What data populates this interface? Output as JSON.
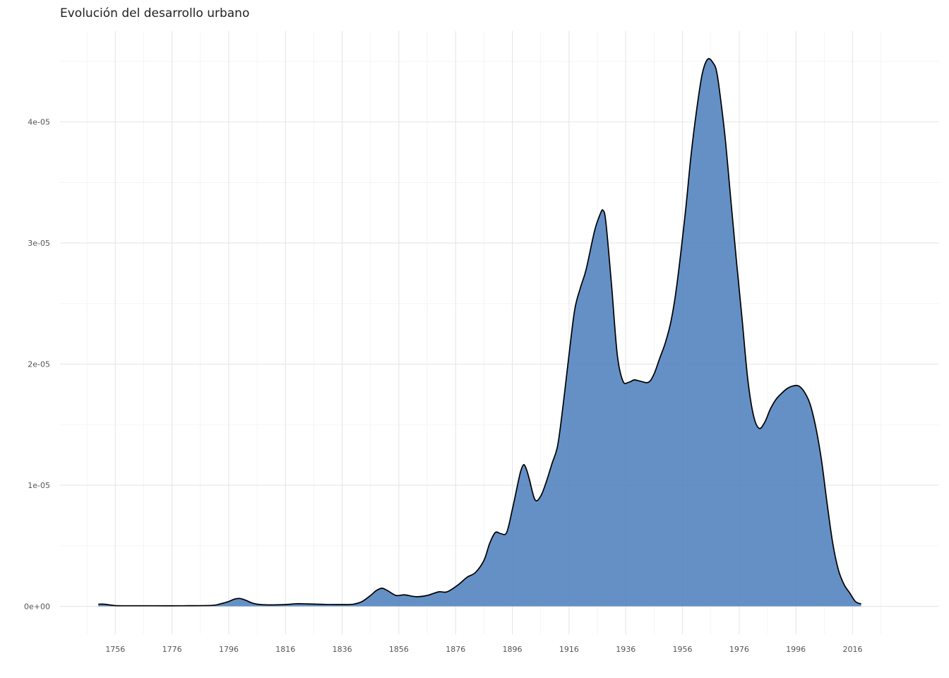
{
  "chart_data": {
    "type": "area",
    "title": "Evolución del desarrollo urbano",
    "xlabel": "",
    "ylabel": "",
    "x_ticks": [
      1756,
      1776,
      1796,
      1816,
      1836,
      1856,
      1876,
      1896,
      1916,
      1936,
      1956,
      1976,
      1996,
      2016
    ],
    "y_ticks": [
      0,
      1e-05,
      2e-05,
      3e-05,
      4e-05
    ],
    "y_tick_labels": [
      "0e+00",
      "1e-05",
      "2e-05",
      "3e-05",
      "4e-05"
    ],
    "xlim": [
      1736.5,
      2046.5
    ],
    "ylim": [
      -2.3e-06,
      4.75e-05
    ],
    "grid": true,
    "fill_color": "#4f81bd",
    "line_color": "#000000",
    "x": [
      1750,
      1752,
      1754,
      1756,
      1760,
      1770,
      1780,
      1790,
      1793,
      1796,
      1798,
      1800,
      1802,
      1804,
      1806,
      1810,
      1816,
      1820,
      1824,
      1830,
      1836,
      1840,
      1843,
      1846,
      1848,
      1850,
      1852,
      1855,
      1858,
      1862,
      1866,
      1870,
      1873,
      1877,
      1880,
      1883,
      1886,
      1888,
      1890,
      1892,
      1894,
      1896,
      1898,
      1899,
      1900,
      1901,
      1902,
      1904,
      1906,
      1908,
      1910,
      1912,
      1914,
      1916,
      1918,
      1920,
      1922,
      1925,
      1927,
      1928,
      1929,
      1931,
      1933,
      1935,
      1937,
      1939,
      1941,
      1944,
      1946,
      1948,
      1950,
      1952,
      1954,
      1957,
      1959,
      1961,
      1963,
      1965,
      1967,
      1968,
      1969,
      1971,
      1973,
      1975,
      1977,
      1979,
      1981,
      1983,
      1985,
      1987,
      1989,
      1991,
      1993,
      1995,
      1997,
      1999,
      2001,
      2003,
      2005,
      2007,
      2009,
      2011,
      2013,
      2015,
      2017,
      2019
    ],
    "y": [
      1.8e-07,
      1.8e-07,
      1.2e-07,
      6e-08,
      5e-08,
      5e-08,
      5e-08,
      8e-08,
      2e-07,
      4e-07,
      6e-07,
      6.5e-07,
      5e-07,
      3e-07,
      1.8e-07,
      1.2e-07,
      1.5e-07,
      2.2e-07,
      2e-07,
      1.6e-07,
      1.5e-07,
      1.8e-07,
      4e-07,
      9e-07,
      1.3e-06,
      1.5e-06,
      1.3e-06,
      9e-07,
      9.5e-07,
      8e-07,
      9e-07,
      1.2e-06,
      1.2e-06,
      1.8e-06,
      2.4e-06,
      2.8e-06,
      3.8e-06,
      5.2e-06,
      6.1e-06,
      6e-06,
      6.1e-06,
      8e-06,
      1.02e-05,
      1.12e-05,
      1.17e-05,
      1.13e-05,
      1.05e-05,
      8.8e-06,
      9.1e-06,
      1.03e-05,
      1.18e-05,
      1.33e-05,
      1.68e-05,
      2.08e-05,
      2.45e-05,
      2.63e-05,
      2.78e-05,
      3.1e-05,
      3.24e-05,
      3.27e-05,
      3.17e-05,
      2.65e-05,
      2.08e-05,
      1.86e-05,
      1.85e-05,
      1.87e-05,
      1.86e-05,
      1.85e-05,
      1.92e-05,
      2.05e-05,
      2.18e-05,
      2.36e-05,
      2.65e-05,
      3.25e-05,
      3.72e-05,
      4.1e-05,
      4.4e-05,
      4.52e-05,
      4.48e-05,
      4.42e-05,
      4.27e-05,
      3.88e-05,
      3.37e-05,
      2.86e-05,
      2.38e-05,
      1.88e-05,
      1.58e-05,
      1.47e-05,
      1.52e-05,
      1.63e-05,
      1.71e-05,
      1.76e-05,
      1.8e-05,
      1.82e-05,
      1.82e-05,
      1.77e-05,
      1.67e-05,
      1.48e-05,
      1.21e-05,
      8.5e-06,
      5.2e-06,
      3e-06,
      1.8e-06,
      1.1e-06,
      4e-07,
      2e-07
    ]
  }
}
